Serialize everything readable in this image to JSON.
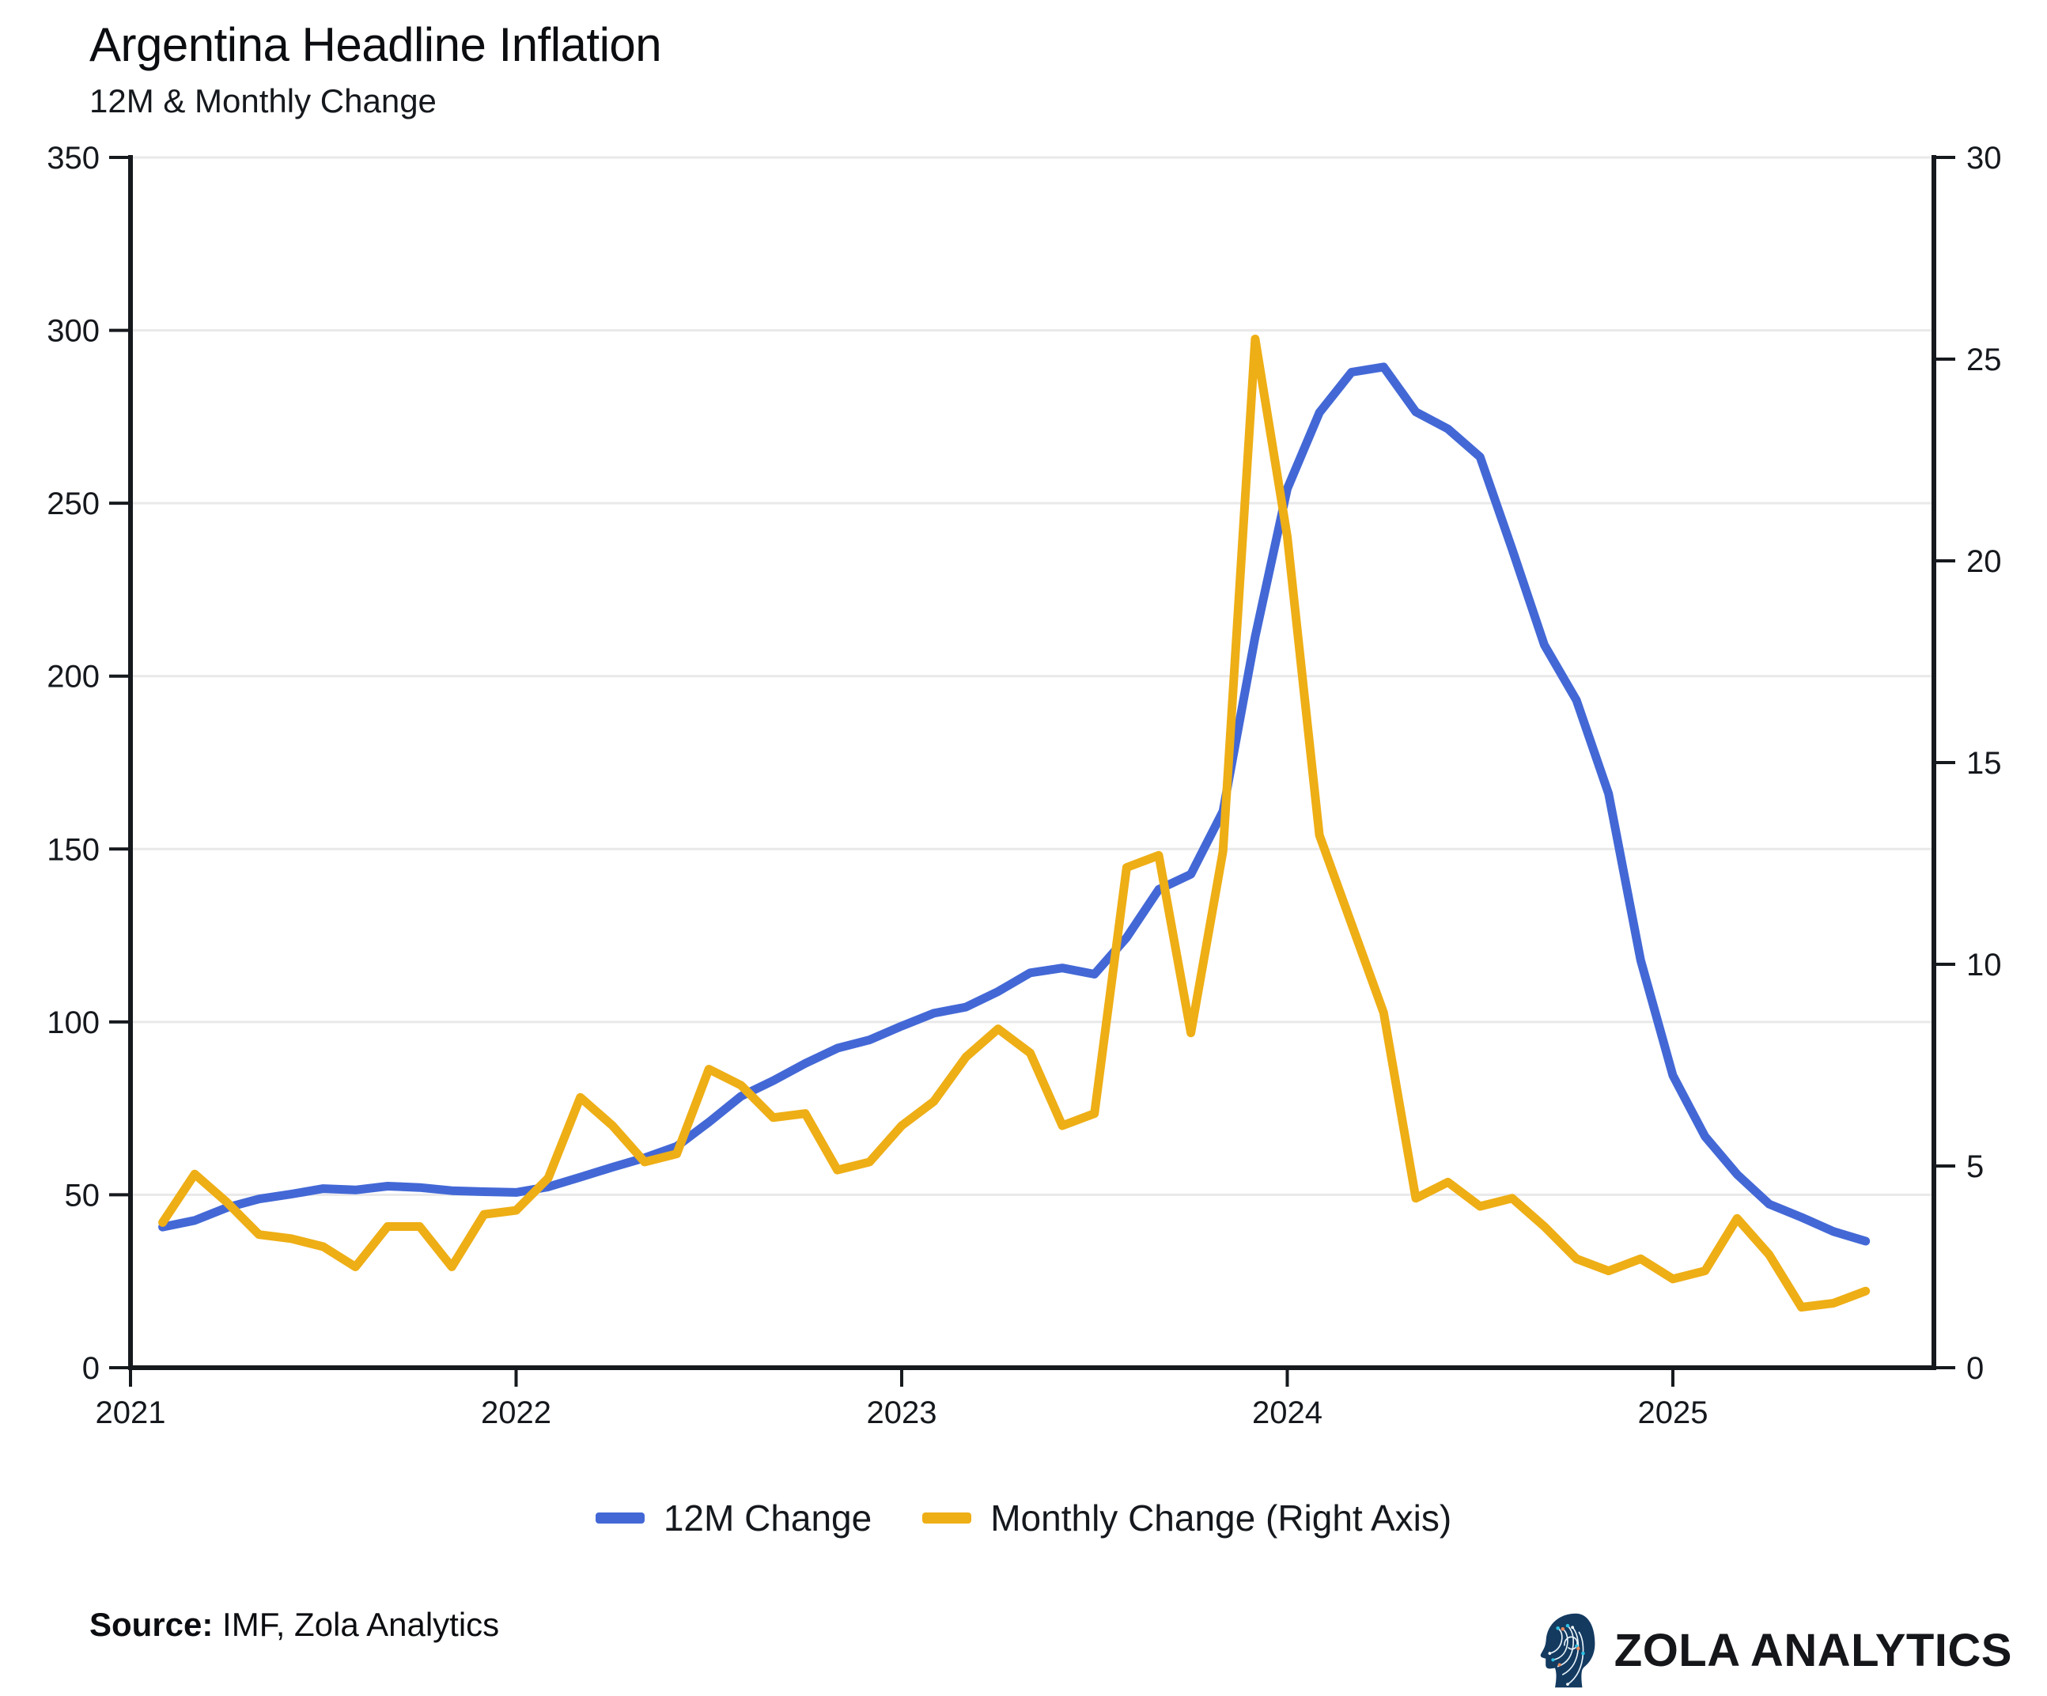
{
  "header": {
    "title": "Argentina Headline Inflation",
    "subtitle": "12M & Monthly Change"
  },
  "chart_data": {
    "type": "line",
    "x_months": [
      "2021-02",
      "2021-03",
      "2021-04",
      "2021-05",
      "2021-06",
      "2021-07",
      "2021-08",
      "2021-09",
      "2021-10",
      "2021-11",
      "2021-12",
      "2022-01",
      "2022-02",
      "2022-03",
      "2022-04",
      "2022-05",
      "2022-06",
      "2022-07",
      "2022-08",
      "2022-09",
      "2022-10",
      "2022-11",
      "2022-12",
      "2023-01",
      "2023-02",
      "2023-03",
      "2023-04",
      "2023-05",
      "2023-06",
      "2023-07",
      "2023-08",
      "2023-09",
      "2023-10",
      "2023-11",
      "2023-12",
      "2024-01",
      "2024-02",
      "2024-03",
      "2024-04",
      "2024-05",
      "2024-06",
      "2024-07",
      "2024-08",
      "2024-09",
      "2024-10",
      "2024-11",
      "2024-12",
      "2025-01",
      "2025-02",
      "2025-03",
      "2025-04",
      "2025-05",
      "2025-06",
      "2025-07"
    ],
    "series": [
      {
        "name": "12M Change",
        "axis": "left",
        "color": "#4368d6",
        "values": [
          40.7,
          42.6,
          46.3,
          48.8,
          50.2,
          51.8,
          51.4,
          52.5,
          52.1,
          51.2,
          50.9,
          50.7,
          52.3,
          55.1,
          58.0,
          60.7,
          64.0,
          71.0,
          78.5,
          83.0,
          88.0,
          92.4,
          94.8,
          98.8,
          102.5,
          104.3,
          108.8,
          114.2,
          115.6,
          113.8,
          124.4,
          138.3,
          142.7,
          160.9,
          211.4,
          254.2,
          276.2,
          287.9,
          289.4,
          276.4,
          271.5,
          263.4,
          236.7,
          209.0,
          193.0,
          166.0,
          117.8,
          84.5,
          66.9,
          55.9,
          47.3,
          43.5,
          39.4,
          36.6
        ]
      },
      {
        "name": "Monthly Change (Right Axis)",
        "axis": "right",
        "color": "#eeae15",
        "values": [
          3.6,
          4.8,
          4.1,
          3.3,
          3.2,
          3.0,
          2.5,
          3.5,
          3.5,
          2.5,
          3.8,
          3.9,
          4.7,
          6.7,
          6.0,
          5.1,
          5.3,
          7.4,
          7.0,
          6.2,
          6.3,
          4.9,
          5.1,
          6.0,
          6.6,
          7.7,
          8.4,
          7.8,
          6.0,
          6.3,
          12.4,
          12.7,
          8.3,
          12.8,
          25.5,
          20.6,
          13.2,
          11.0,
          8.8,
          4.2,
          4.6,
          4.0,
          4.2,
          3.5,
          2.7,
          2.4,
          2.7,
          2.2,
          2.4,
          3.7,
          2.8,
          1.5,
          1.6,
          1.9
        ]
      }
    ],
    "left_axis": {
      "ticks": [
        0,
        50,
        100,
        150,
        200,
        250,
        300,
        350
      ],
      "range": [
        0,
        350
      ]
    },
    "right_axis": {
      "ticks": [
        0,
        5,
        10,
        15,
        20,
        25,
        30
      ],
      "range": [
        0,
        30
      ]
    },
    "x_axis": {
      "tick_years": [
        2021,
        2022,
        2023,
        2024,
        2025
      ],
      "range_years": [
        2021,
        2025.677
      ]
    },
    "grid": "horizontal",
    "legend_position": "bottom-center",
    "colors": {
      "grid": "#e9e9e9",
      "axis": "#16191d",
      "tick_text": "#15181d"
    }
  },
  "footer": {
    "source_label": "Source:",
    "source_text": "IMF, Zola Analytics"
  },
  "branding": {
    "icon": "circuit-head-icon",
    "name": "ZOLA ANALYTICS",
    "head_fill": "#143a60",
    "trace_color": "#e9f4fb",
    "dot_teal": "#2fc1e4",
    "dot_orange": "#e9895b"
  }
}
